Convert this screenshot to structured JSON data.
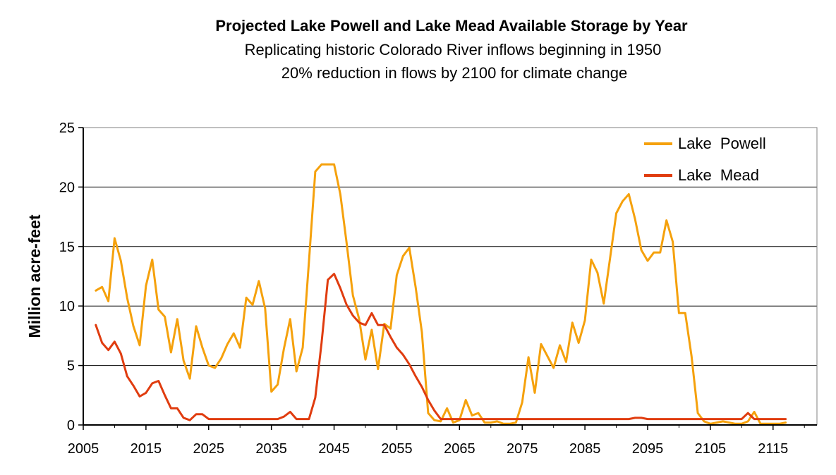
{
  "chart_data": {
    "type": "line",
    "title": "Projected Lake Powell and Lake Mead Available Storage by Year",
    "subtitles": [
      "Replicating historic Colorado River inflows beginning in 1950",
      "20% reduction in flows by 2100 for climate change"
    ],
    "xlabel": "",
    "ylabel": "Million acre-feet",
    "xlim": [
      2005,
      2122
    ],
    "ylim": [
      0,
      25
    ],
    "x_ticks": [
      2005,
      2015,
      2025,
      2035,
      2045,
      2055,
      2065,
      2075,
      2085,
      2095,
      2105,
      2115
    ],
    "y_ticks": [
      0,
      5,
      10,
      15,
      20,
      25
    ],
    "grid": "horizontal",
    "legend_position": "top-right",
    "x": [
      2007,
      2008,
      2009,
      2010,
      2011,
      2012,
      2013,
      2014,
      2015,
      2016,
      2017,
      2018,
      2019,
      2020,
      2021,
      2022,
      2023,
      2024,
      2025,
      2026,
      2027,
      2028,
      2029,
      2030,
      2031,
      2032,
      2033,
      2034,
      2035,
      2036,
      2037,
      2038,
      2039,
      2040,
      2041,
      2042,
      2043,
      2044,
      2045,
      2046,
      2047,
      2048,
      2049,
      2050,
      2051,
      2052,
      2053,
      2054,
      2055,
      2056,
      2057,
      2058,
      2059,
      2060,
      2061,
      2062,
      2063,
      2064,
      2065,
      2066,
      2067,
      2068,
      2069,
      2070,
      2071,
      2072,
      2073,
      2074,
      2075,
      2076,
      2077,
      2078,
      2079,
      2080,
      2081,
      2082,
      2083,
      2084,
      2085,
      2086,
      2087,
      2088,
      2089,
      2090,
      2091,
      2092,
      2093,
      2094,
      2095,
      2096,
      2097,
      2098,
      2099,
      2100,
      2101,
      2102,
      2103,
      2104,
      2105,
      2106,
      2107,
      2108,
      2109,
      2110,
      2111,
      2112,
      2113,
      2114,
      2115,
      2116,
      2117
    ],
    "series": [
      {
        "name": "Lake  Powell",
        "color": "#f5a10c",
        "values": [
          11.3,
          11.6,
          10.4,
          15.7,
          13.8,
          10.7,
          8.3,
          6.7,
          11.7,
          13.9,
          9.7,
          9.1,
          6.1,
          8.9,
          5.4,
          3.9,
          8.3,
          6.5,
          5.0,
          4.8,
          5.6,
          6.8,
          7.7,
          6.5,
          10.7,
          10.1,
          12.1,
          9.8,
          2.8,
          3.4,
          6.4,
          8.9,
          4.5,
          6.5,
          13.8,
          21.3,
          21.9,
          21.9,
          21.9,
          19.4,
          15.3,
          10.9,
          8.9,
          5.5,
          8.0,
          4.7,
          8.5,
          8.1,
          12.6,
          14.2,
          14.9,
          11.6,
          7.8,
          1.0,
          0.4,
          0.3,
          1.4,
          0.2,
          0.4,
          2.1,
          0.8,
          1.0,
          0.2,
          0.2,
          0.3,
          0.1,
          0.1,
          0.2,
          1.9,
          5.7,
          2.7,
          6.8,
          5.8,
          4.8,
          6.7,
          5.3,
          8.6,
          6.9,
          8.8,
          13.9,
          12.8,
          10.2,
          14.0,
          17.8,
          18.8,
          19.4,
          17.3,
          14.7,
          13.8,
          14.5,
          14.5,
          17.2,
          15.4,
          9.4,
          9.4,
          5.8,
          1.0,
          0.3,
          0.1,
          0.2,
          0.3,
          0.2,
          0.1,
          0.1,
          0.3,
          1.1,
          0.1,
          0.1,
          0.1,
          0.1,
          0.2
        ]
      },
      {
        "name": "Lake  Mead",
        "color": "#e03c0f",
        "values": [
          8.4,
          6.9,
          6.3,
          7.0,
          6.0,
          4.1,
          3.3,
          2.4,
          2.7,
          3.5,
          3.7,
          2.5,
          1.4,
          1.4,
          0.6,
          0.4,
          0.9,
          0.9,
          0.5,
          0.5,
          0.5,
          0.5,
          0.5,
          0.5,
          0.5,
          0.5,
          0.5,
          0.5,
          0.5,
          0.5,
          0.7,
          1.1,
          0.5,
          0.5,
          0.5,
          2.3,
          6.9,
          12.2,
          12.7,
          11.5,
          10.1,
          9.2,
          8.6,
          8.4,
          9.4,
          8.4,
          8.4,
          7.4,
          6.5,
          5.9,
          5.1,
          4.1,
          3.2,
          2.1,
          1.2,
          0.5,
          0.5,
          0.5,
          0.5,
          0.5,
          0.5,
          0.5,
          0.5,
          0.5,
          0.5,
          0.5,
          0.5,
          0.5,
          0.5,
          0.5,
          0.5,
          0.5,
          0.5,
          0.5,
          0.5,
          0.5,
          0.5,
          0.5,
          0.5,
          0.5,
          0.5,
          0.5,
          0.5,
          0.5,
          0.5,
          0.5,
          0.6,
          0.6,
          0.5,
          0.5,
          0.5,
          0.5,
          0.5,
          0.5,
          0.5,
          0.5,
          0.5,
          0.5,
          0.5,
          0.5,
          0.5,
          0.5,
          0.5,
          0.5,
          1.0,
          0.5,
          0.5,
          0.5,
          0.5,
          0.5,
          0.5
        ]
      }
    ]
  }
}
